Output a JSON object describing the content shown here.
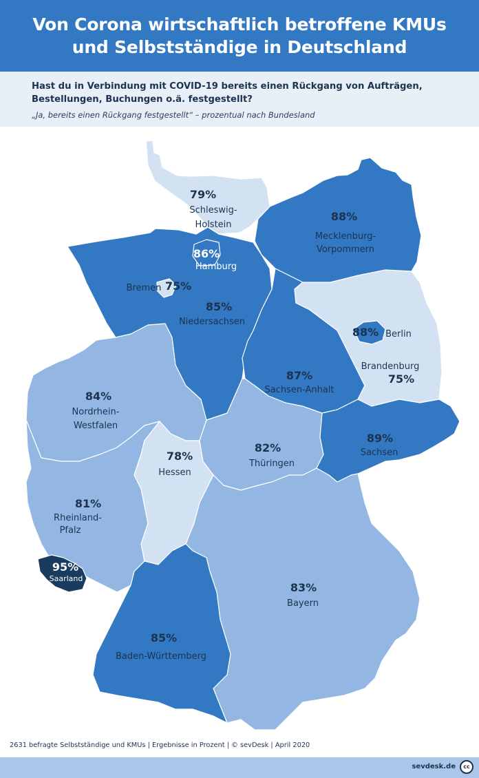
{
  "header": {
    "title_line1": "Von Corona wirtschaftlich betroffene KMUs",
    "title_line2": "und Selbstständige in Deutschland"
  },
  "question": {
    "text": "Hast du in Verbindung mit COVID-19 bereits einen Rückgang von Aufträgen, Bestellungen, Buchungen o.ä. festgestellt?",
    "subtitle": "„Ja, bereits einen Rückgang festgestellt“ – prozentual nach Bundesland"
  },
  "colors": {
    "header_bg": "#3378c3",
    "very_light": "#d3e2f3",
    "light": "#93b6e2",
    "mid": "#3378c3",
    "dark": "#193b5e",
    "label_dark": "#1c3350",
    "label_light": "#ffffff"
  },
  "states": {
    "schleswig_holstein": {
      "name": "Schleswig-Holstein",
      "name_line1": "Schleswig-",
      "name_line2": "Holstein",
      "percent": "79%",
      "value": 79
    },
    "mecklenburg_vorpommern": {
      "name": "Mecklenburg-Vorpommern",
      "name_line1": "Mecklenburg-",
      "name_line2": "Vorpommern",
      "percent": "88%",
      "value": 88
    },
    "hamburg": {
      "name": "Hamburg",
      "percent": "86%",
      "value": 86
    },
    "bremen": {
      "name": "Bremen",
      "percent": "75%",
      "value": 75
    },
    "niedersachsen": {
      "name": "Niedersachsen",
      "percent": "85%",
      "value": 85
    },
    "berlin": {
      "name": "Berlin",
      "percent": "88%",
      "value": 88
    },
    "brandenburg": {
      "name": "Brandenburg",
      "percent": "75%",
      "value": 75
    },
    "sachsen_anhalt": {
      "name": "Sachsen-Anhalt",
      "percent": "87%",
      "value": 87
    },
    "nordrhein_westfalen": {
      "name": "Nordrhein-Westfalen",
      "name_line1": "Nordrhein-",
      "name_line2": "Westfalen",
      "percent": "84%",
      "value": 84
    },
    "sachsen": {
      "name": "Sachsen",
      "percent": "89%",
      "value": 89
    },
    "thueringen": {
      "name": "Thüringen",
      "percent": "82%",
      "value": 82
    },
    "hessen": {
      "name": "Hessen",
      "percent": "78%",
      "value": 78
    },
    "rheinland_pfalz": {
      "name": "Rheinland-Pfalz",
      "name_line1": "Rheinland-",
      "name_line2": "Pfalz",
      "percent": "81%",
      "value": 81
    },
    "saarland": {
      "name": "Saarland",
      "percent": "95%",
      "value": 95
    },
    "bayern": {
      "name": "Bayern",
      "percent": "83%",
      "value": 83
    },
    "baden_wuerttemberg": {
      "name": "Baden-Württemberg",
      "percent": "85%",
      "value": 85
    }
  },
  "footer": {
    "note": "2631 befragte Selbstständige und KMUs | Ergebnisse in Prozent | © sevDesk | April 2020",
    "brand": "sevdesk.de",
    "license_icon": "cc-license-icon",
    "license_text": "cc"
  }
}
